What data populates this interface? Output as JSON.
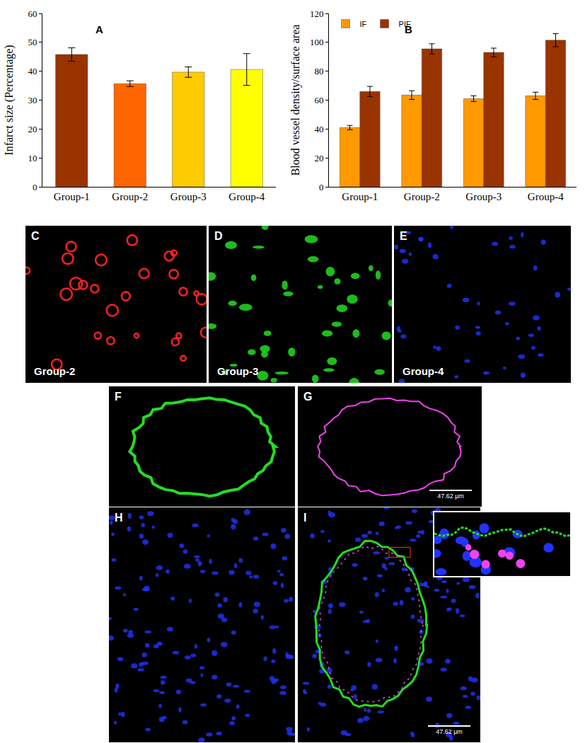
{
  "chart_data": [
    {
      "type": "bar",
      "annotations": [
        "A"
      ],
      "y_label": "Infarct size (Percentage)",
      "categories": [
        "Group-1",
        "Group-2",
        "Group-3",
        "Group-4"
      ],
      "values": [
        45.8,
        35.7,
        39.7,
        40.6
      ],
      "errors": [
        2.3,
        1.0,
        1.8,
        5.5
      ],
      "colors": [
        "#993300",
        "#ff6600",
        "#ffcc00",
        "#ffff00"
      ],
      "ylim": [
        0,
        60
      ],
      "yticks": [
        0,
        10,
        20,
        30,
        40,
        50,
        60
      ],
      "grid": false
    },
    {
      "type": "bar",
      "annotations": [
        "B"
      ],
      "y_label": "Blood vessel density/surface area",
      "categories": [
        "Group-1",
        "Group-2",
        "Group-3",
        "Group-4"
      ],
      "series": [
        {
          "name": "IF",
          "color": "#ff9900",
          "values": [
            41,
            63.5,
            61,
            63
          ],
          "errors": [
            1.5,
            3,
            2,
            2.5
          ]
        },
        {
          "name": "PIF",
          "color": "#993300",
          "values": [
            66,
            95.5,
            93,
            101.5
          ],
          "errors": [
            3.5,
            3.5,
            3,
            4.5
          ]
        }
      ],
      "ylim": [
        0,
        120
      ],
      "yticks": [
        0,
        20,
        40,
        60,
        80,
        100,
        120
      ],
      "grid": false,
      "legend": "top left"
    }
  ],
  "image_panels": [
    {
      "label": "C",
      "caption": "Group-2",
      "color": "#ff2020"
    },
    {
      "label": "D",
      "caption": "Group-3",
      "color": "#22dd22"
    },
    {
      "label": "E",
      "caption": "Group-4",
      "color": "#2233ff"
    },
    {
      "label": "F",
      "color": "#22dd22"
    },
    {
      "label": "G",
      "color": "#ee44ee",
      "scale_bar": "47.62 µm"
    },
    {
      "label": "H",
      "color": "#2233ff"
    },
    {
      "label": "I",
      "color": "#22dd22",
      "scale_bar": "47.62 µm"
    }
  ]
}
